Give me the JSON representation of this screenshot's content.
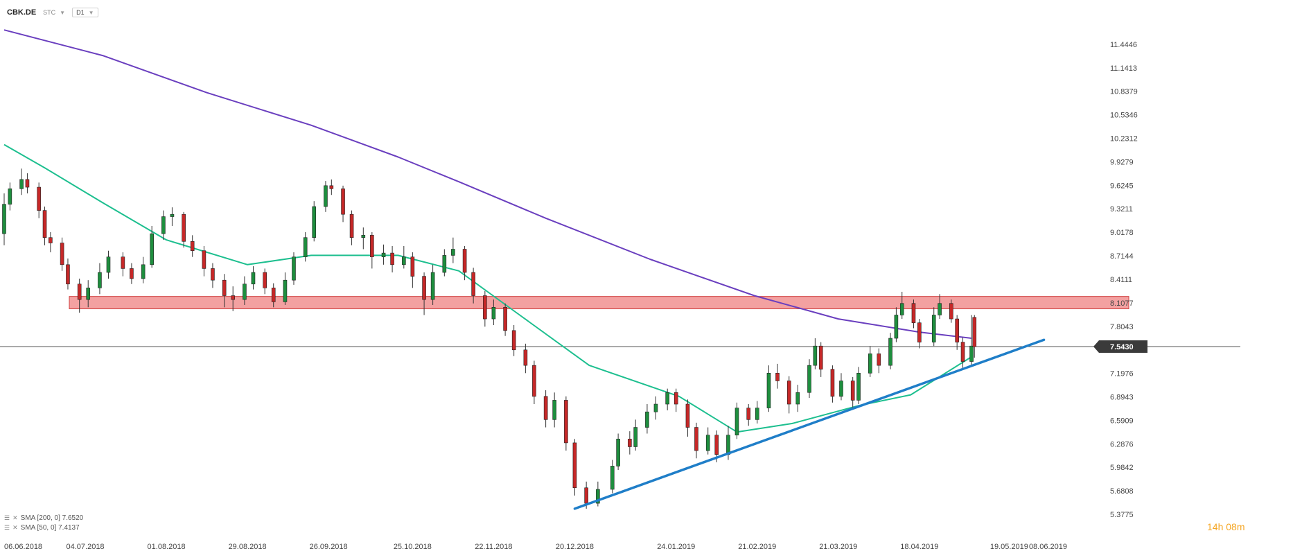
{
  "header": {
    "symbol": "CBK.DE",
    "mode": "STC",
    "timeframe": "D1"
  },
  "legend": [
    {
      "label": "SMA [200, 0] 7.6520",
      "color": "#6a3fbf"
    },
    {
      "label": "SMA [50, 0] 7.4137",
      "color": "#1dbf8f"
    }
  ],
  "countdown": "14h 08m",
  "colors": {
    "bull": "#1e8e3e",
    "bear": "#c62828",
    "sma200": "#6a3fbf",
    "sma50": "#1dbf8f",
    "trend": "#1f7ec8",
    "zone_fill": "#f08a8a",
    "zone_border": "#d04040",
    "price_line": "#555555",
    "price_tag": "#3a3a3a"
  },
  "chart_data": {
    "type": "candlestick",
    "title": "",
    "xlabel": "",
    "ylabel": "",
    "ylim": [
      5.3775,
      11.7479
    ],
    "xlim": [
      "2018-06-06",
      "2019-06-08"
    ],
    "x_ticks": [
      "06.06.2018",
      "04.07.2018",
      "01.08.2018",
      "29.08.2018",
      "26.09.2018",
      "25.10.2018",
      "22.11.2018",
      "20.12.2018",
      "24.01.2019",
      "21.02.2019",
      "21.03.2019",
      "18.04.2019",
      "19.05.2019",
      "08.06.2019"
    ],
    "y_ticks": [
      "11.4446",
      "11.1413",
      "10.8379",
      "10.5346",
      "10.2312",
      "9.9279",
      "9.6245",
      "9.3211",
      "9.0178",
      "8.7144",
      "8.4111",
      "8.1077",
      "7.8043",
      "7.1976",
      "6.8943",
      "6.5909",
      "6.2876",
      "5.9842",
      "5.6808",
      "5.3775"
    ],
    "current_price": "7.5430",
    "resistance_zone": [
      8.03,
      8.19
    ],
    "trendline": {
      "start": [
        "2018-12-20",
        5.45
      ],
      "end": [
        "2019-05-31",
        7.63
      ]
    },
    "sma200": [
      [
        "2018-06-06",
        11.63
      ],
      [
        "2018-07-10",
        11.3
      ],
      [
        "2018-08-15",
        10.82
      ],
      [
        "2018-09-20",
        10.4
      ],
      [
        "2018-10-20",
        9.99
      ],
      [
        "2018-11-10",
        9.67
      ],
      [
        "2018-12-10",
        9.2
      ],
      [
        "2019-01-15",
        8.67
      ],
      [
        "2019-02-20",
        8.2
      ],
      [
        "2019-03-21",
        7.9
      ],
      [
        "2019-04-18",
        7.73
      ],
      [
        "2019-05-06",
        7.65
      ]
    ],
    "sma50": [
      [
        "2018-06-06",
        10.15
      ],
      [
        "2018-06-20",
        9.85
      ],
      [
        "2018-07-10",
        9.4
      ],
      [
        "2018-08-01",
        8.92
      ],
      [
        "2018-08-29",
        8.6
      ],
      [
        "2018-09-20",
        8.72
      ],
      [
        "2018-10-20",
        8.72
      ],
      [
        "2018-11-10",
        8.52
      ],
      [
        "2018-12-01",
        7.95
      ],
      [
        "2018-12-25",
        7.3
      ],
      [
        "2019-01-25",
        6.9
      ],
      [
        "2019-02-14",
        6.44
      ],
      [
        "2019-03-05",
        6.55
      ],
      [
        "2019-03-28",
        6.78
      ],
      [
        "2019-04-15",
        6.92
      ],
      [
        "2019-05-06",
        7.41
      ]
    ],
    "candles": [
      [
        "2018-06-06",
        9.0,
        9.38,
        9.52,
        8.85
      ],
      [
        "2018-06-08",
        9.38,
        9.58,
        9.66,
        9.3
      ],
      [
        "2018-06-12",
        9.58,
        9.7,
        9.84,
        9.5
      ],
      [
        "2018-06-14",
        9.7,
        9.6,
        9.78,
        9.52
      ],
      [
        "2018-06-18",
        9.6,
        9.3,
        9.66,
        9.2
      ],
      [
        "2018-06-20",
        9.3,
        8.95,
        9.35,
        8.85
      ],
      [
        "2018-06-22",
        8.95,
        8.88,
        9.02,
        8.76
      ],
      [
        "2018-06-26",
        8.88,
        8.6,
        8.95,
        8.52
      ],
      [
        "2018-06-28",
        8.6,
        8.35,
        8.68,
        8.28
      ],
      [
        "2018-07-02",
        8.35,
        8.15,
        8.42,
        7.98
      ],
      [
        "2018-07-05",
        8.15,
        8.3,
        8.4,
        8.05
      ],
      [
        "2018-07-09",
        8.3,
        8.5,
        8.62,
        8.22
      ],
      [
        "2018-07-12",
        8.5,
        8.7,
        8.78,
        8.42
      ],
      [
        "2018-07-17",
        8.7,
        8.55,
        8.76,
        8.45
      ],
      [
        "2018-07-20",
        8.55,
        8.42,
        8.62,
        8.35
      ],
      [
        "2018-07-24",
        8.42,
        8.6,
        8.7,
        8.36
      ],
      [
        "2018-07-27",
        8.6,
        9.0,
        9.1,
        8.56
      ],
      [
        "2018-07-31",
        9.0,
        9.22,
        9.3,
        8.92
      ],
      [
        "2018-08-03",
        9.22,
        9.25,
        9.34,
        9.1
      ],
      [
        "2018-08-07",
        9.25,
        8.9,
        9.28,
        8.82
      ],
      [
        "2018-08-10",
        8.9,
        8.78,
        8.98,
        8.7
      ],
      [
        "2018-08-14",
        8.78,
        8.55,
        8.84,
        8.45
      ],
      [
        "2018-08-17",
        8.55,
        8.4,
        8.62,
        8.3
      ],
      [
        "2018-08-21",
        8.4,
        8.2,
        8.48,
        8.05
      ],
      [
        "2018-08-24",
        8.2,
        8.15,
        8.32,
        8.0
      ],
      [
        "2018-08-28",
        8.15,
        8.35,
        8.45,
        8.08
      ],
      [
        "2018-08-31",
        8.35,
        8.5,
        8.58,
        8.28
      ],
      [
        "2018-09-04",
        8.5,
        8.3,
        8.55,
        8.22
      ],
      [
        "2018-09-07",
        8.3,
        8.12,
        8.36,
        8.05
      ],
      [
        "2018-09-11",
        8.12,
        8.4,
        8.5,
        8.08
      ],
      [
        "2018-09-14",
        8.4,
        8.7,
        8.76,
        8.34
      ],
      [
        "2018-09-18",
        8.7,
        8.95,
        9.02,
        8.64
      ],
      [
        "2018-09-21",
        8.95,
        9.35,
        9.42,
        8.9
      ],
      [
        "2018-09-25",
        9.35,
        9.62,
        9.68,
        9.28
      ],
      [
        "2018-09-27",
        9.62,
        9.58,
        9.7,
        9.5
      ],
      [
        "2018-10-01",
        9.58,
        9.25,
        9.62,
        9.15
      ],
      [
        "2018-10-04",
        9.25,
        8.95,
        9.3,
        8.85
      ],
      [
        "2018-10-08",
        8.95,
        8.98,
        9.08,
        8.8
      ],
      [
        "2018-10-11",
        8.98,
        8.7,
        9.02,
        8.55
      ],
      [
        "2018-10-15",
        8.7,
        8.75,
        8.86,
        8.6
      ],
      [
        "2018-10-18",
        8.75,
        8.6,
        8.84,
        8.5
      ],
      [
        "2018-10-22",
        8.6,
        8.7,
        8.84,
        8.55
      ],
      [
        "2018-10-25",
        8.7,
        8.45,
        8.76,
        8.3
      ],
      [
        "2018-10-29",
        8.45,
        8.15,
        8.5,
        7.95
      ],
      [
        "2018-11-01",
        8.15,
        8.5,
        8.6,
        8.08
      ],
      [
        "2018-11-05",
        8.5,
        8.72,
        8.8,
        8.45
      ],
      [
        "2018-11-08",
        8.72,
        8.8,
        8.95,
        8.62
      ],
      [
        "2018-11-12",
        8.8,
        8.5,
        8.84,
        8.4
      ],
      [
        "2018-11-15",
        8.5,
        8.2,
        8.56,
        8.1
      ],
      [
        "2018-11-19",
        8.2,
        7.9,
        8.26,
        7.8
      ],
      [
        "2018-11-22",
        7.9,
        8.05,
        8.15,
        7.82
      ],
      [
        "2018-11-26",
        8.05,
        7.75,
        8.1,
        7.68
      ],
      [
        "2018-11-29",
        7.75,
        7.5,
        7.82,
        7.42
      ],
      [
        "2018-12-03",
        7.5,
        7.3,
        7.58,
        7.2
      ],
      [
        "2018-12-06",
        7.3,
        6.9,
        7.36,
        6.8
      ],
      [
        "2018-12-10",
        6.9,
        6.6,
        6.98,
        6.5
      ],
      [
        "2018-12-13",
        6.6,
        6.85,
        6.95,
        6.5
      ],
      [
        "2018-12-17",
        6.85,
        6.3,
        6.9,
        6.2
      ],
      [
        "2018-12-20",
        6.3,
        5.72,
        6.35,
        5.62
      ],
      [
        "2018-12-24",
        5.72,
        5.52,
        5.8,
        5.45
      ],
      [
        "2018-12-28",
        5.52,
        5.7,
        5.8,
        5.48
      ],
      [
        "2019-01-02",
        5.7,
        6.0,
        6.08,
        5.65
      ],
      [
        "2019-01-04",
        6.0,
        6.35,
        6.42,
        5.95
      ],
      [
        "2019-01-08",
        6.35,
        6.25,
        6.45,
        6.15
      ],
      [
        "2019-01-10",
        6.25,
        6.5,
        6.6,
        6.2
      ],
      [
        "2019-01-14",
        6.5,
        6.7,
        6.8,
        6.42
      ],
      [
        "2019-01-17",
        6.7,
        6.8,
        6.9,
        6.6
      ],
      [
        "2019-01-21",
        6.8,
        6.95,
        7.0,
        6.72
      ],
      [
        "2019-01-24",
        6.95,
        6.8,
        7.0,
        6.7
      ],
      [
        "2019-01-28",
        6.8,
        6.5,
        6.86,
        6.38
      ],
      [
        "2019-01-31",
        6.5,
        6.2,
        6.56,
        6.1
      ],
      [
        "2019-02-04",
        6.2,
        6.4,
        6.5,
        6.15
      ],
      [
        "2019-02-07",
        6.4,
        6.15,
        6.46,
        6.05
      ],
      [
        "2019-02-11",
        6.15,
        6.4,
        6.52,
        6.08
      ],
      [
        "2019-02-14",
        6.4,
        6.75,
        6.82,
        6.35
      ],
      [
        "2019-02-18",
        6.75,
        6.6,
        6.8,
        6.52
      ],
      [
        "2019-02-21",
        6.6,
        6.75,
        6.84,
        6.55
      ],
      [
        "2019-02-25",
        6.75,
        7.2,
        7.3,
        6.7
      ],
      [
        "2019-02-28",
        7.2,
        7.1,
        7.32,
        7.0
      ],
      [
        "2019-03-04",
        7.1,
        6.8,
        7.16,
        6.68
      ],
      [
        "2019-03-07",
        6.8,
        6.95,
        7.05,
        6.7
      ],
      [
        "2019-03-11",
        6.95,
        7.3,
        7.38,
        6.88
      ],
      [
        "2019-03-13",
        7.3,
        7.55,
        7.65,
        7.25
      ],
      [
        "2019-03-15",
        7.55,
        7.25,
        7.6,
        7.15
      ],
      [
        "2019-03-19",
        7.25,
        6.9,
        7.3,
        6.82
      ],
      [
        "2019-03-22",
        6.9,
        7.1,
        7.2,
        6.85
      ],
      [
        "2019-03-26",
        7.1,
        6.85,
        7.15,
        6.75
      ],
      [
        "2019-03-28",
        6.85,
        7.2,
        7.28,
        6.8
      ],
      [
        "2019-04-01",
        7.2,
        7.45,
        7.55,
        7.15
      ],
      [
        "2019-04-04",
        7.45,
        7.3,
        7.52,
        7.2
      ],
      [
        "2019-04-08",
        7.3,
        7.65,
        7.72,
        7.25
      ],
      [
        "2019-04-10",
        7.65,
        7.95,
        8.05,
        7.6
      ],
      [
        "2019-04-12",
        7.95,
        8.1,
        8.25,
        7.9
      ],
      [
        "2019-04-16",
        8.1,
        7.85,
        8.15,
        7.78
      ],
      [
        "2019-04-18",
        7.85,
        7.6,
        7.9,
        7.52
      ],
      [
        "2019-04-23",
        7.6,
        7.95,
        8.05,
        7.55
      ],
      [
        "2019-04-25",
        7.95,
        8.1,
        8.22,
        7.9
      ],
      [
        "2019-04-29",
        8.1,
        7.9,
        8.15,
        7.85
      ],
      [
        "2019-05-01",
        7.9,
        7.6,
        7.95,
        7.5
      ],
      [
        "2019-05-03",
        7.6,
        7.35,
        7.66,
        7.25
      ],
      [
        "2019-05-06",
        7.35,
        7.55,
        7.95,
        7.3
      ],
      [
        "2019-05-07",
        7.92,
        7.54,
        7.95,
        7.4
      ]
    ]
  }
}
